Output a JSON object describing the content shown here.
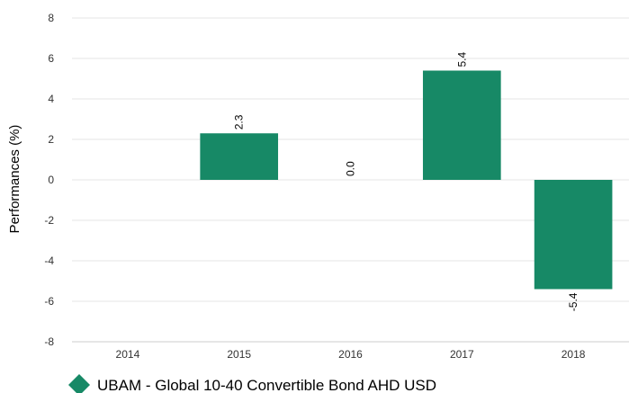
{
  "chart_data": {
    "type": "bar",
    "categories": [
      "2014",
      "2015",
      "2016",
      "2017",
      "2018"
    ],
    "series": [
      {
        "name": "UBAM - Global 10-40 Convertible Bond AHD USD",
        "values": [
          null,
          2.3,
          0.0,
          5.4,
          -5.4
        ],
        "color": "#178966"
      }
    ],
    "data_labels": [
      "",
      "2.3",
      "0.0",
      "5.4",
      "-5.4"
    ],
    "ylabel": "Performances (%)",
    "xlabel": "",
    "ylim": [
      -8,
      8
    ],
    "yticks": [
      8,
      6,
      4,
      2,
      0,
      -2,
      -4,
      -6,
      -8
    ],
    "grid": true,
    "legend_position": "bottom-left"
  }
}
